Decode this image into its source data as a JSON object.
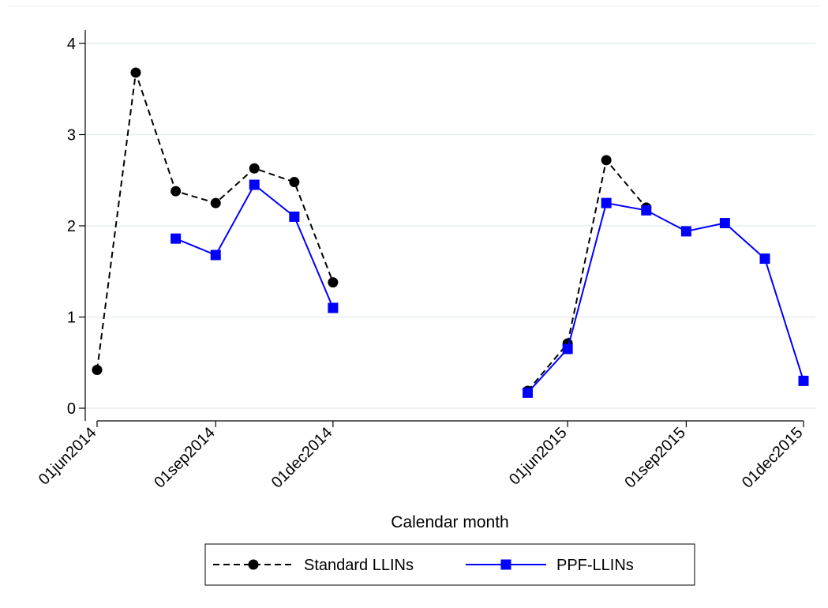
{
  "chart_data": {
    "type": "line",
    "title": "",
    "xlabel": "Calendar month",
    "ylabel": "",
    "ylim": [
      0,
      4
    ],
    "yticks": [
      "0",
      "1",
      "2",
      "3",
      "4"
    ],
    "xticks": [
      "01jun2014",
      "01sep2014",
      "01dec2014",
      "01jun2015",
      "01sep2015",
      "01dec2015"
    ],
    "xtick_dates": [
      "2014-06-01",
      "2014-09-01",
      "2014-12-01",
      "2015-06-01",
      "2015-09-01",
      "2015-12-01"
    ],
    "grid": true,
    "legend_position": "bottom",
    "series": [
      {
        "name": "Standard LLINs",
        "color": "#000000",
        "line_style": "dashed",
        "marker": "circle",
        "points": [
          {
            "x": "2014-06-01",
            "y": 0.42
          },
          {
            "x": "2014-07-01",
            "y": 3.68
          },
          {
            "x": "2014-08-01",
            "y": 2.38
          },
          {
            "x": "2014-09-01",
            "y": 2.25
          },
          {
            "x": "2014-10-01",
            "y": 2.63
          },
          {
            "x": "2014-11-01",
            "y": 2.48
          },
          {
            "x": "2014-12-01",
            "y": 1.38
          },
          {
            "x": "2015-05-01",
            "y": 0.19
          },
          {
            "x": "2015-06-01",
            "y": 0.71
          },
          {
            "x": "2015-07-01",
            "y": 2.72
          },
          {
            "x": "2015-08-01",
            "y": 2.2
          }
        ]
      },
      {
        "name": "PPF-LLINs",
        "color": "#0000ff",
        "line_style": "solid",
        "marker": "square",
        "points": [
          {
            "x": "2014-08-01",
            "y": 1.86
          },
          {
            "x": "2014-09-01",
            "y": 1.68
          },
          {
            "x": "2014-10-01",
            "y": 2.45
          },
          {
            "x": "2014-11-01",
            "y": 2.1
          },
          {
            "x": "2014-12-01",
            "y": 1.1
          },
          {
            "x": "2015-05-01",
            "y": 0.17
          },
          {
            "x": "2015-06-01",
            "y": 0.65
          },
          {
            "x": "2015-07-01",
            "y": 2.25
          },
          {
            "x": "2015-08-01",
            "y": 2.17
          },
          {
            "x": "2015-09-01",
            "y": 1.94
          },
          {
            "x": "2015-10-01",
            "y": 2.03
          },
          {
            "x": "2015-11-01",
            "y": 1.64
          },
          {
            "x": "2015-12-01",
            "y": 0.3
          }
        ]
      }
    ]
  }
}
